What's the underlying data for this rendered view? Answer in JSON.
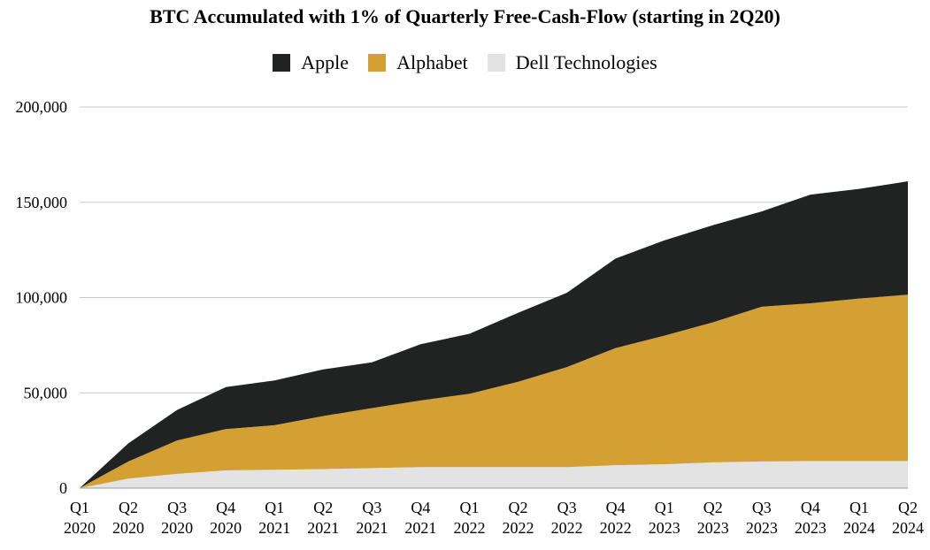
{
  "chart_data": {
    "type": "area",
    "stacked": true,
    "title": "BTC Accumulated with 1% of Quarterly Free-Cash-Flow (starting in 2Q20)",
    "xlabel": "",
    "ylabel": "",
    "ylim": [
      0,
      200000
    ],
    "yticks": [
      "0",
      "50,000",
      "100,000",
      "150,000",
      "200,000"
    ],
    "ytick_values": [
      0,
      50000,
      100000,
      150000,
      200000
    ],
    "grid": true,
    "legend_position": "top-center",
    "categories": [
      [
        "Q1",
        "2020"
      ],
      [
        "Q2",
        "2020"
      ],
      [
        "Q3",
        "2020"
      ],
      [
        "Q4",
        "2020"
      ],
      [
        "Q1",
        "2021"
      ],
      [
        "Q2",
        "2021"
      ],
      [
        "Q3",
        "2021"
      ],
      [
        "Q4",
        "2021"
      ],
      [
        "Q1",
        "2022"
      ],
      [
        "Q2",
        "2022"
      ],
      [
        "Q3",
        "2022"
      ],
      [
        "Q4",
        "2022"
      ],
      [
        "Q1",
        "2023"
      ],
      [
        "Q2",
        "2023"
      ],
      [
        "Q3",
        "2023"
      ],
      [
        "Q4",
        "2023"
      ],
      [
        "Q1",
        "2024"
      ],
      [
        "Q2",
        "2024"
      ]
    ],
    "series": [
      {
        "name": "Dell Technologies",
        "color": "#e3e3e3",
        "values": [
          0,
          5000,
          7500,
          9300,
          9600,
          10000,
          10500,
          11000,
          11000,
          11000,
          11000,
          12000,
          12500,
          13500,
          14000,
          14200,
          14200,
          14200
        ]
      },
      {
        "name": "Alphabet",
        "color": "#d4a034",
        "values": [
          0,
          9000,
          17500,
          21700,
          23400,
          27800,
          31500,
          35000,
          38500,
          44800,
          52500,
          61500,
          67500,
          73500,
          81200,
          82800,
          85300,
          87300
        ]
      },
      {
        "name": "Apple",
        "color": "#212322",
        "values": [
          0,
          9500,
          16000,
          22000,
          23500,
          24500,
          24000,
          29500,
          31500,
          36200,
          39000,
          47000,
          50000,
          51000,
          50000,
          57000,
          57500,
          59500
        ]
      }
    ],
    "legend_order": [
      "Apple",
      "Alphabet",
      "Dell Technologies"
    ]
  }
}
